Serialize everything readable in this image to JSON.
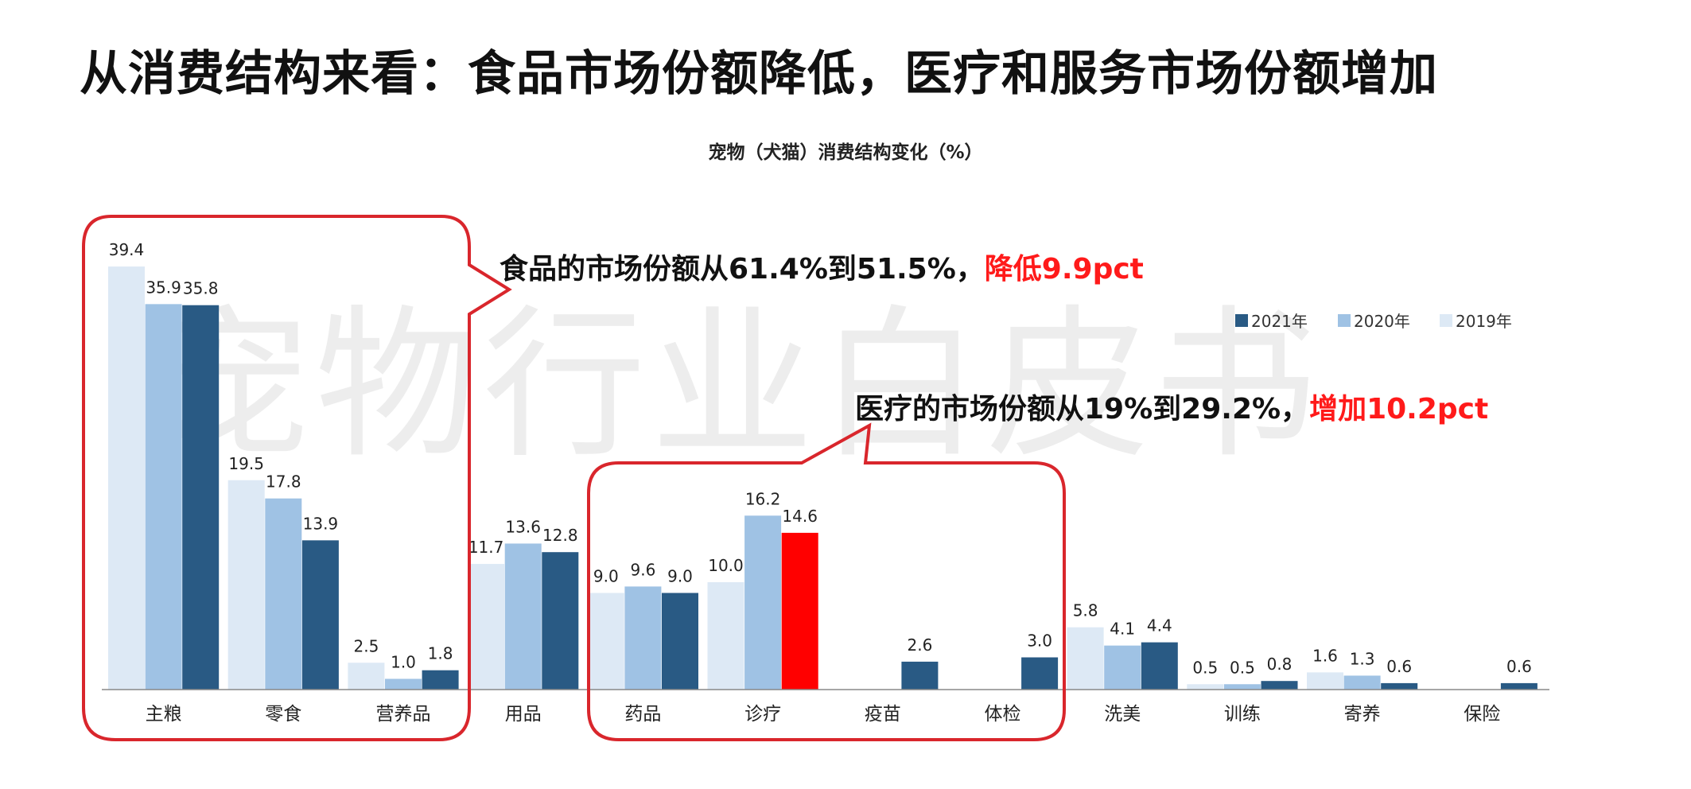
{
  "slide": {
    "title": "从消费结构来看：食品市场份额降低，医疗和服务市场份额增加"
  },
  "watermark": "宠物行业白皮书",
  "callouts": {
    "food": {
      "text": "食品的市场份额从61.4%到51.5%，",
      "highlight": "降低9.9pct"
    },
    "medical": {
      "text": "医疗的市场份额从19%到29.2%，",
      "highlight": "增加10.2pct"
    }
  },
  "colors": {
    "y2019": "#dde9f5",
    "y2020": "#9fc2e4",
    "y2021": "#295a84",
    "highlight": "#ff0000",
    "callout_border": "#d9262c"
  },
  "chart_data": {
    "type": "bar",
    "title": "宠物（犬猫）消费结构变化（%）",
    "categories": [
      "主粮",
      "零食",
      "营养品",
      "用品",
      "药品",
      "诊疗",
      "疫苗",
      "体检",
      "洗美",
      "训练",
      "寄养",
      "保险"
    ],
    "series": [
      {
        "name": "2019年",
        "values": [
          39.4,
          19.5,
          2.5,
          11.7,
          9.0,
          10.0,
          null,
          null,
          5.8,
          0.5,
          1.6,
          null
        ],
        "labels": [
          "39.4",
          "19.5",
          "2.5",
          "11.7",
          "9.0",
          "10.0",
          "",
          "",
          "5.8",
          "0.5",
          "1.6",
          ""
        ]
      },
      {
        "name": "2020年",
        "values": [
          35.9,
          17.8,
          1.0,
          13.6,
          9.6,
          16.2,
          null,
          null,
          4.1,
          0.5,
          1.3,
          null
        ],
        "labels": [
          "35.9",
          "17.8",
          "1.0",
          "13.6",
          "9.6",
          "16.2",
          "",
          "",
          "4.1",
          "0.5",
          "1.3",
          ""
        ]
      },
      {
        "name": "2021年",
        "values": [
          35.8,
          13.9,
          1.8,
          12.8,
          9.0,
          14.6,
          2.6,
          3.0,
          4.4,
          0.8,
          0.6,
          0.6
        ],
        "labels": [
          "35.8",
          "13.9",
          "1.8",
          "12.8",
          "9.0",
          "14.6",
          "2.6",
          "3.0",
          "4.4",
          "0.8",
          "0.6",
          "0.6"
        ]
      }
    ],
    "highlighted_bar": {
      "category": "诊疗",
      "series": "2021年"
    },
    "legend": {
      "placement": "top-right",
      "order": [
        "2021年",
        "2020年",
        "2019年"
      ]
    },
    "ylim": [
      0,
      40
    ],
    "grid": false
  }
}
